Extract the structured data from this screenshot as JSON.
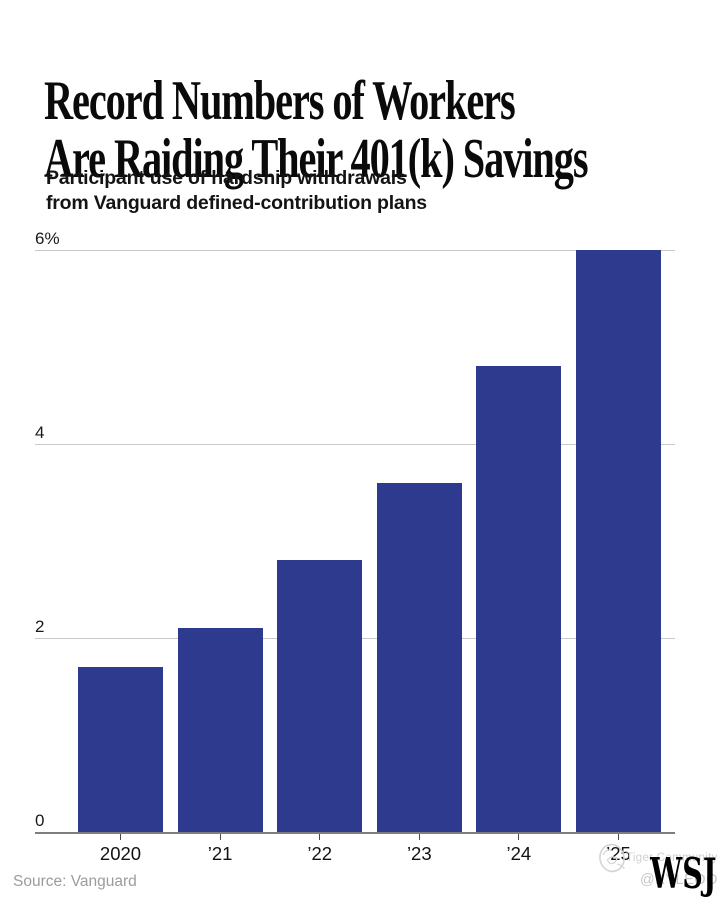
{
  "header": {
    "title": "Record Numbers of Workers\nAre Raiding Their 401(k) Savings",
    "subtitle": "Participant use of hardship withdrawals\nfrom Vanguard defined-contribution plans"
  },
  "chart_data": {
    "type": "bar",
    "title": "Participant use of hardship withdrawals from Vanguard defined-contribution plans",
    "categories": [
      "2020",
      "’21",
      "’22",
      "’23",
      "’24",
      "’25"
    ],
    "values": [
      1.7,
      2.1,
      2.8,
      3.6,
      4.8,
      6.0
    ],
    "xlabel": "",
    "ylabel": "",
    "ylim": [
      0,
      6
    ],
    "yticks": [
      {
        "value": 0,
        "label": "0"
      },
      {
        "value": 2,
        "label": "2"
      },
      {
        "value": 4,
        "label": "4"
      },
      {
        "value": 6,
        "label": "6%"
      }
    ],
    "grid": true,
    "legend": false
  },
  "colors": {
    "bar": "#2e3a8e",
    "gridline": "#c9c9c9",
    "zeroline": "#7e7e7e",
    "tick": "#4a4a4a",
    "source_text": "#9c9c9c",
    "watermark": "#cfcfcf"
  },
  "footer": {
    "source": "Source: Vanguard",
    "logo": "WSJ"
  },
  "watermark": {
    "icon": "tiger-community-logo-icon",
    "label": "Tiger Community",
    "handle": "@KYLEOO"
  }
}
